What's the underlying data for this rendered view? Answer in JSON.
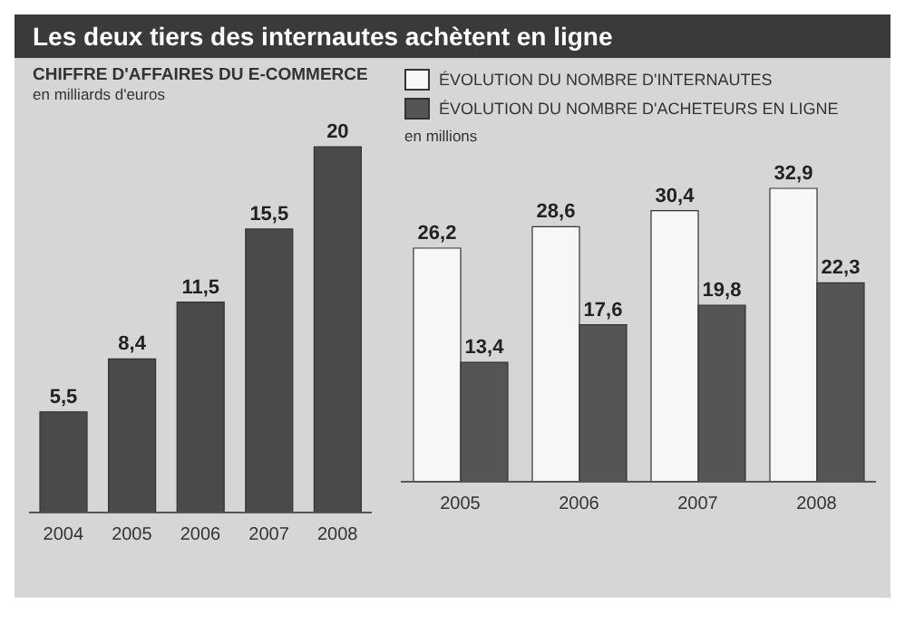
{
  "chart_data": [
    {
      "type": "bar",
      "title": "Les deux tiers des internautes achètent en ligne",
      "subtitle": "CHIFFRE D'AFFAIRES DU E-COMMERCE",
      "ylabel": "en milliards d'euros",
      "categories": [
        "2004",
        "2005",
        "2006",
        "2007",
        "2008"
      ],
      "values": [
        5.5,
        8.4,
        11.5,
        15.5,
        20
      ],
      "value_labels": [
        "5,5",
        "8,4",
        "11,5",
        "15,5",
        "20"
      ],
      "color": "#4a4a4a"
    },
    {
      "type": "bar",
      "ylabel": "en millions",
      "categories": [
        "2005",
        "2006",
        "2007",
        "2008"
      ],
      "legend": "top left",
      "series": [
        {
          "name": "ÉVOLUTION DU NOMBRE D'INTERNAUTES",
          "color": "#f7f7f7",
          "values": [
            26.2,
            28.6,
            30.4,
            32.9
          ],
          "value_labels": [
            "26,2",
            "28,6",
            "30,4",
            "32,9"
          ]
        },
        {
          "name": "ÉVOLUTION DU NOMBRE D'ACHETEURS EN LIGNE",
          "color": "#555555",
          "values": [
            13.4,
            17.6,
            19.8,
            22.3
          ],
          "value_labels": [
            "13,4",
            "17,6",
            "19,8",
            "22,3"
          ]
        }
      ]
    }
  ]
}
